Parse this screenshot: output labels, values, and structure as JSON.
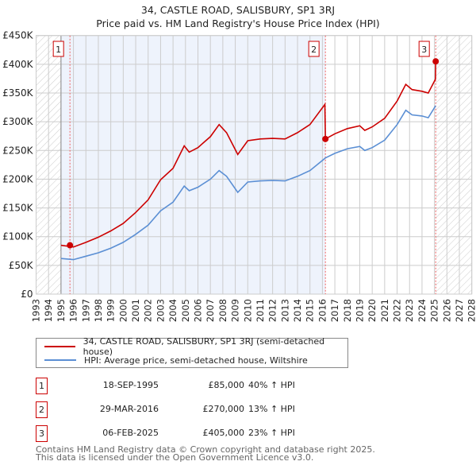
{
  "title_line1": "34, CASTLE ROAD, SALISBURY, SP1 3RJ",
  "title_line2": "Price paid vs. HM Land Registry's House Price Index (HPI)",
  "colors": {
    "price": "#cc0000",
    "hpi": "#5b8fd4",
    "shade": "#eef3fc",
    "marker_border": "#cc0000"
  },
  "chart_data": {
    "type": "line",
    "xlim": [
      1993,
      2028
    ],
    "ylim": [
      0,
      450000
    ],
    "x_ticks": [
      1993,
      1994,
      1995,
      1996,
      1997,
      1998,
      1999,
      2000,
      2001,
      2002,
      2003,
      2004,
      2005,
      2006,
      2007,
      2008,
      2009,
      2010,
      2011,
      2012,
      2013,
      2014,
      2015,
      2016,
      2017,
      2018,
      2019,
      2020,
      2021,
      2022,
      2023,
      2024,
      2025,
      2026,
      2027,
      2028
    ],
    "y_ticks": [
      {
        "v": 0,
        "label": "£0"
      },
      {
        "v": 50000,
        "label": "£50K"
      },
      {
        "v": 100000,
        "label": "£100K"
      },
      {
        "v": 150000,
        "label": "£150K"
      },
      {
        "v": 200000,
        "label": "£200K"
      },
      {
        "v": 250000,
        "label": "£250K"
      },
      {
        "v": 300000,
        "label": "£300K"
      },
      {
        "v": 350000,
        "label": "£350K"
      },
      {
        "v": 400000,
        "label": "£400K"
      },
      {
        "v": 450000,
        "label": "£450K"
      }
    ],
    "grid": true,
    "hatched_ranges": [
      [
        1993,
        1995
      ],
      [
        2025.1,
        2028
      ]
    ],
    "shaded_range": [
      1995,
      2016.24
    ],
    "series": [
      {
        "name": "34, CASTLE ROAD, SALISBURY, SP1 3RJ (semi-detached house)",
        "color": "#cc0000",
        "x": [
          1995,
          1996,
          1997,
          1998,
          1999,
          2000,
          2001,
          2002,
          2003,
          2004,
          2004.9,
          2005.3,
          2006,
          2007,
          2007.7,
          2008.3,
          2009.2,
          2010,
          2011,
          2012,
          2013,
          2014,
          2015,
          2016.2,
          2016.24,
          2017,
          2018,
          2019,
          2019.4,
          2020,
          2021,
          2022,
          2022.7,
          2023.2,
          2024,
          2024.5,
          2025.08,
          2025.1
        ],
        "y": [
          85000,
          82000,
          90000,
          99000,
          110000,
          123000,
          142000,
          164000,
          199000,
          219000,
          258000,
          247000,
          255000,
          274000,
          295000,
          281000,
          243000,
          267000,
          270000,
          271000,
          270000,
          281000,
          295000,
          330000,
          270000,
          279000,
          288000,
          293000,
          285000,
          291000,
          306000,
          336000,
          365000,
          356000,
          353000,
          350000,
          374000,
          405000
        ]
      },
      {
        "name": "HPI: Average price, semi-detached house, Wiltshire",
        "color": "#5b8fd4",
        "x": [
          1995,
          1996,
          1997,
          1998,
          1999,
          2000,
          2001,
          2002,
          2003,
          2004,
          2004.9,
          2005.3,
          2006,
          2007,
          2007.7,
          2008.3,
          2009.2,
          2010,
          2011,
          2012,
          2013,
          2014,
          2015,
          2016.24,
          2017,
          2018,
          2019,
          2019.4,
          2020,
          2021,
          2022,
          2022.7,
          2023.2,
          2024,
          2024.5,
          2025.1
        ],
        "y": [
          62000,
          60000,
          66000,
          72000,
          80000,
          90000,
          104000,
          120000,
          145000,
          160000,
          188000,
          180000,
          186000,
          200000,
          215000,
          205000,
          177000,
          195000,
          197000,
          198000,
          197000,
          205000,
          215000,
          237000,
          245000,
          253000,
          257000,
          250000,
          255000,
          268000,
          295000,
          320000,
          312000,
          310000,
          307000,
          328000
        ]
      }
    ],
    "sales": [
      {
        "n": "1",
        "x": 1995.72,
        "y": 85000,
        "date": "18-SEP-1995",
        "price": "£85,000",
        "hpi": "40% ↑ HPI"
      },
      {
        "n": "2",
        "x": 2016.24,
        "y": 270000,
        "date": "29-MAR-2016",
        "price": "£270,000",
        "hpi": "13% ↑ HPI"
      },
      {
        "n": "3",
        "x": 2025.1,
        "y": 405000,
        "date": "06-FEB-2025",
        "price": "£405,000",
        "hpi": "23% ↑ HPI"
      }
    ]
  },
  "legend": {
    "price": "34, CASTLE ROAD, SALISBURY, SP1 3RJ (semi-detached house)",
    "hpi": "HPI: Average price, semi-detached house, Wiltshire"
  },
  "footer": {
    "line1": "Contains HM Land Registry data © Crown copyright and database right 2025.",
    "line2": "This data is licensed under the Open Government Licence v3.0."
  }
}
